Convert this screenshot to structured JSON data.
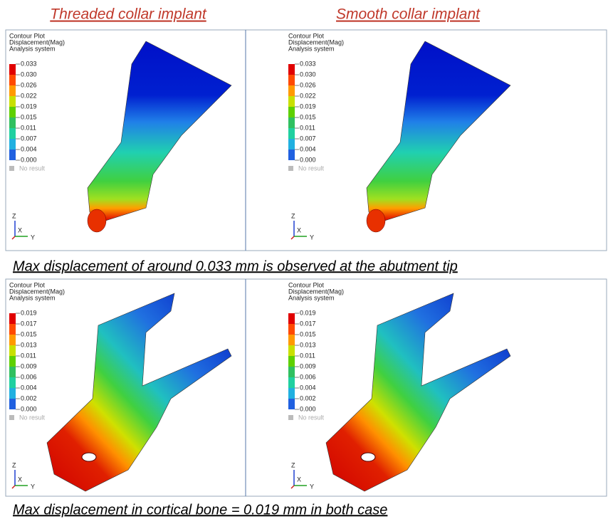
{
  "titles": [
    "Threaded collar implant",
    "Smooth collar implant"
  ],
  "panels": [
    {
      "header": [
        "Contour Plot",
        "Displacement(Mag)",
        "Analysis system"
      ],
      "legend": [
        "0.033",
        "0.030",
        "0.026",
        "0.022",
        "0.019",
        "0.015",
        "0.011",
        "0.007",
        "0.004",
        "0.000"
      ],
      "no_result": "No result",
      "axes": [
        "Z",
        "X",
        "Y"
      ]
    },
    {
      "header": [
        "Contour Plot",
        "Displacement(Mag)",
        "Analysis system"
      ],
      "legend": [
        "0.033",
        "0.030",
        "0.026",
        "0.022",
        "0.019",
        "0.015",
        "0.011",
        "0.007",
        "0.004",
        "0.000"
      ],
      "no_result": "No result",
      "axes": [
        "Z",
        "X",
        "Y"
      ]
    },
    {
      "header": [
        "Contour Plot",
        "Displacement(Mag)",
        "Analysis system"
      ],
      "legend": [
        "0.019",
        "0.017",
        "0.015",
        "0.013",
        "0.011",
        "0.009",
        "0.006",
        "0.004",
        "0.002",
        "0.000"
      ],
      "no_result": "No result",
      "axes": [
        "Z",
        "X",
        "Y"
      ]
    },
    {
      "header": [
        "Contour Plot",
        "Displacement(Mag)",
        "Analysis system"
      ],
      "legend": [
        "0.019",
        "0.017",
        "0.015",
        "0.013",
        "0.011",
        "0.009",
        "0.006",
        "0.004",
        "0.002",
        "0.000"
      ],
      "no_result": "No result",
      "axes": [
        "Z",
        "X",
        "Y"
      ]
    }
  ],
  "captions": [
    "Max displacement of around 0.033 mm is observed at the abutment tip",
    "Max displacement in cortical bone = 0.019 mm in both case"
  ]
}
